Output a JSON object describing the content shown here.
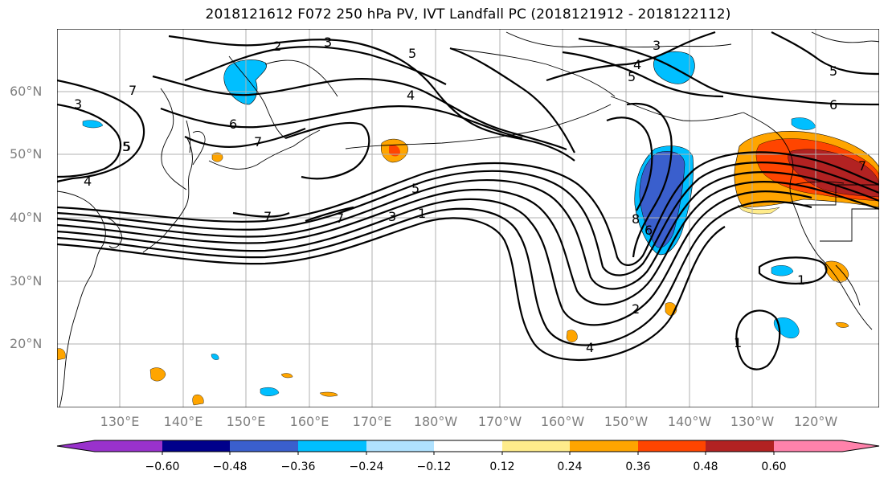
{
  "title": "2018121612 F072 250 hPa PV, IVT Landfall PC (2018121912 - 2018122112)",
  "lat_labels": [
    "60°N",
    "50°N",
    "40°N",
    "30°N",
    "20°N"
  ],
  "lon_labels": [
    "130°E",
    "140°E",
    "150°E",
    "160°E",
    "170°E",
    "180°W",
    "170°W",
    "160°W",
    "150°W",
    "140°W",
    "130°W",
    "120°W"
  ],
  "colorbar": {
    "ticks": [
      "−0.60",
      "−0.48",
      "−0.36",
      "−0.24",
      "−0.12",
      "0.12",
      "0.24",
      "0.36",
      "0.48",
      "0.60"
    ],
    "colors": [
      "#9932cc",
      "#00008b",
      "#3a5fcd",
      "#00bfff",
      "#b0e2ff",
      "#ffffff",
      "#ffec8b",
      "#ffa500",
      "#ff4500",
      "#b22222",
      "#ff82ab"
    ]
  },
  "contour_labels": [
    {
      "text": "2"
    },
    {
      "text": "3"
    },
    {
      "text": "5"
    },
    {
      "text": "3"
    },
    {
      "text": "4"
    },
    {
      "text": "5"
    },
    {
      "text": "5"
    },
    {
      "text": "6"
    },
    {
      "text": "6"
    },
    {
      "text": "4"
    },
    {
      "text": "3"
    },
    {
      "text": "7"
    },
    {
      "text": "5"
    },
    {
      "text": "4"
    },
    {
      "text": "7"
    },
    {
      "text": "7"
    },
    {
      "text": "7"
    },
    {
      "text": "3"
    },
    {
      "text": "1"
    },
    {
      "text": "5"
    },
    {
      "text": "8"
    },
    {
      "text": "6"
    },
    {
      "text": "2"
    },
    {
      "text": "4"
    },
    {
      "text": "1"
    },
    {
      "text": "1"
    },
    {
      "text": "5"
    },
    {
      "text": "7"
    }
  ]
}
